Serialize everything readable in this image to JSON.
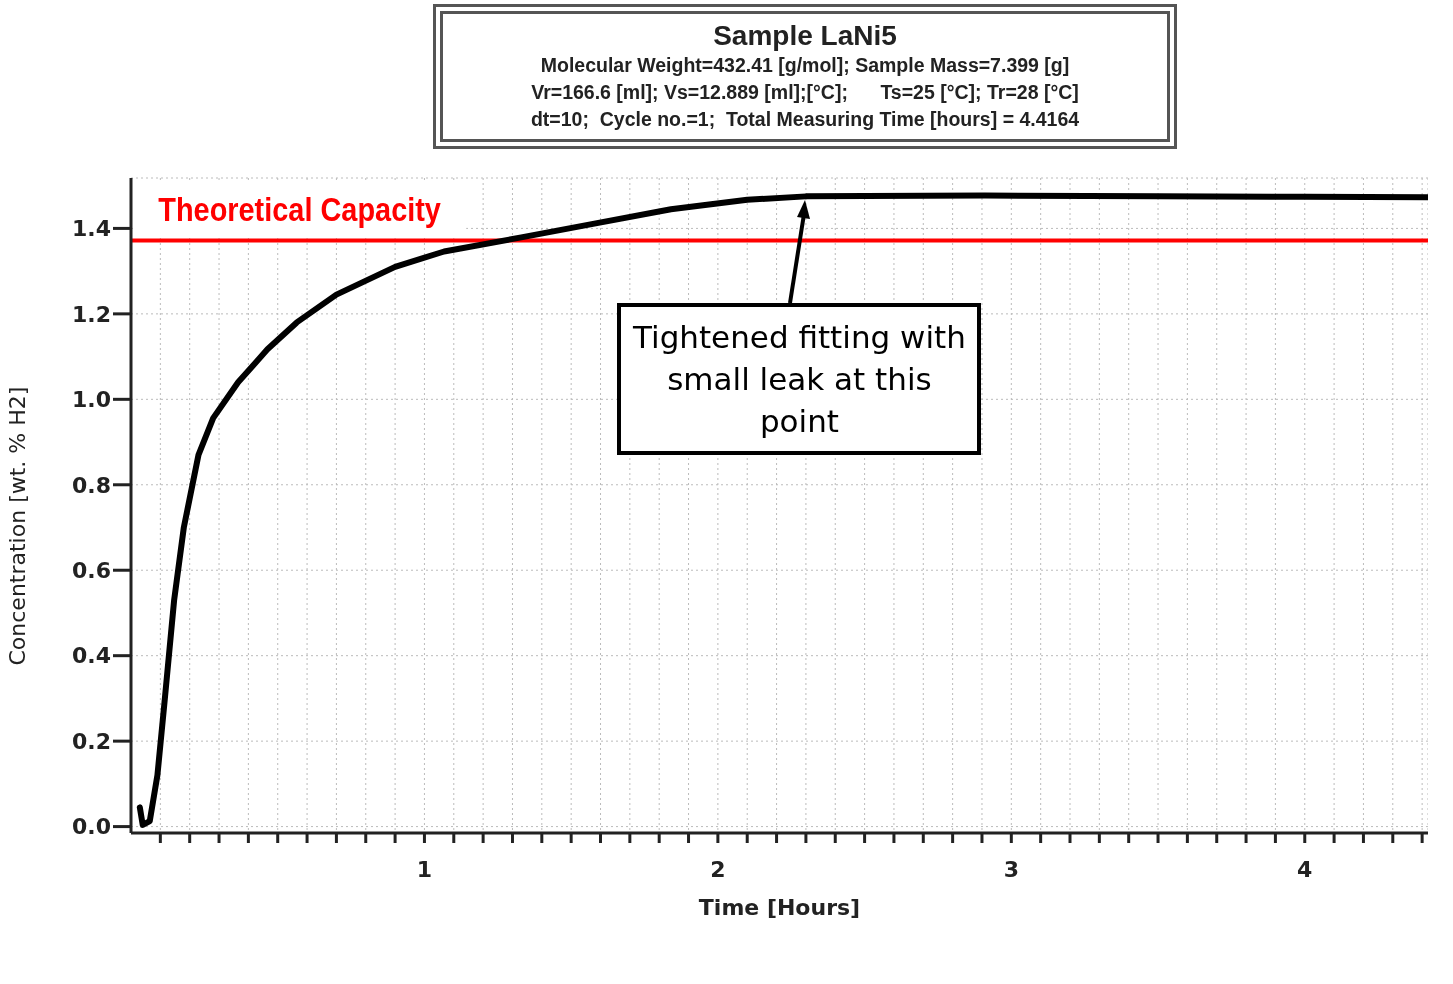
{
  "chart_data": {
    "type": "line",
    "title": "Sample LaNi5",
    "subtitle": "Molecular Weight=432.41 [g/mol]; Sample Mass=7.399 [g]\nVr=166.6 [ml]; Vs=12.889 [ml];[°C];      Ts=25 [°C]; Tr=28 [°C]\ndt=10;  Cycle no.=1;  Total Measuring Time [hours] = 4.4164",
    "xlabel": "Time [Hours]",
    "ylabel": "Concentration [wt. % H2]",
    "x": [
      0.03,
      0.04,
      0.064,
      0.09,
      0.114,
      0.147,
      0.18,
      0.23,
      0.28,
      0.365,
      0.465,
      0.565,
      0.7,
      0.9,
      1.067,
      1.33,
      1.57,
      1.84,
      2.1,
      2.3,
      2.91,
      3.5,
      4.0,
      4.42
    ],
    "series": [
      {
        "color": "#000000",
        "values": [
          0.045,
          0.004,
          0.013,
          0.12,
          0.29,
          0.53,
          0.7,
          0.87,
          0.956,
          1.04,
          1.117,
          1.18,
          1.245,
          1.31,
          1.346,
          1.379,
          1.41,
          1.445,
          1.467,
          1.475,
          1.477,
          1.475,
          1.474,
          1.473
        ]
      }
    ],
    "xlim": [
      0,
      4.42
    ],
    "ylim": [
      -0.015,
      1.518
    ],
    "xticks": [
      {
        "value": 0.1,
        "label": null
      },
      {
        "value": 0.2,
        "label": null
      },
      {
        "value": 0.3,
        "label": null
      },
      {
        "value": 0.4,
        "label": null
      },
      {
        "value": 0.5,
        "label": null
      },
      {
        "value": 0.6,
        "label": null
      },
      {
        "value": 0.7,
        "label": null
      },
      {
        "value": 0.8,
        "label": null
      },
      {
        "value": 0.9,
        "label": null
      },
      1,
      {
        "value": 1.1,
        "label": null
      },
      {
        "value": 1.2,
        "label": null
      },
      {
        "value": 1.3,
        "label": null
      },
      {
        "value": 1.4,
        "label": null
      },
      {
        "value": 1.5,
        "label": null
      },
      {
        "value": 1.6,
        "label": null
      },
      {
        "value": 1.7,
        "label": null
      },
      {
        "value": 1.8,
        "label": null
      },
      {
        "value": 1.9,
        "label": null
      },
      2,
      {
        "value": 2.1,
        "label": null
      },
      {
        "value": 2.2,
        "label": null
      },
      {
        "value": 2.3,
        "label": null
      },
      {
        "value": 2.4,
        "label": null
      },
      {
        "value": 2.5,
        "label": null
      },
      {
        "value": 2.6,
        "label": null
      },
      {
        "value": 2.7,
        "label": null
      },
      {
        "value": 2.8,
        "label": null
      },
      {
        "value": 2.9,
        "label": null
      },
      3,
      {
        "value": 3.1,
        "label": null
      },
      {
        "value": 3.2,
        "label": null
      },
      {
        "value": 3.3,
        "label": null
      },
      {
        "value": 3.4,
        "label": null
      },
      {
        "value": 3.5,
        "label": null
      },
      {
        "value": 3.6,
        "label": null
      },
      {
        "value": 3.7,
        "label": null
      },
      {
        "value": 3.8,
        "label": null
      },
      {
        "value": 3.9,
        "label": null
      },
      4,
      {
        "value": 4.1,
        "label": null
      },
      {
        "value": 4.2,
        "label": null
      },
      {
        "value": 4.3,
        "label": null
      },
      {
        "value": 4.4,
        "label": null
      }
    ],
    "yticks": [
      {
        "value": 0,
        "label": "0.0"
      },
      0.2,
      0.4,
      0.6,
      0.8,
      {
        "value": 1,
        "label": "1.0"
      },
      1.2,
      1.4
    ],
    "grid": true,
    "ref_lines": [
      {
        "axis": "y",
        "value": 1.372,
        "label": "Theoretical Capacity",
        "color": "#ff0000"
      }
    ],
    "annotations": [
      "Tightened fitting with small leak at this point"
    ]
  }
}
